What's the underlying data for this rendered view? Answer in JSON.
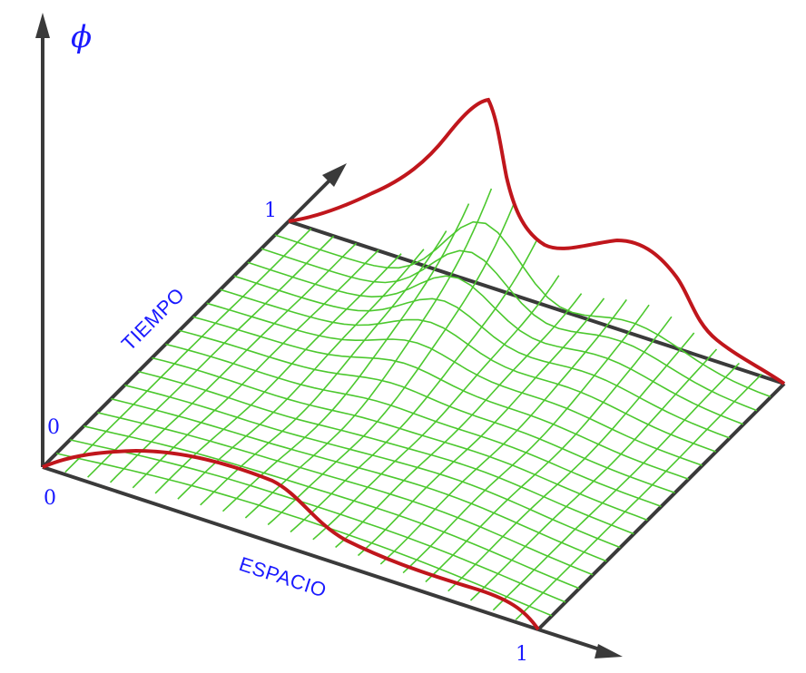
{
  "diagram": {
    "phi_label": "ϕ",
    "space_label": "ESPACIO",
    "time_label": "TIEMPO",
    "origin_time_label": "0",
    "origin_space_label": "0",
    "space_end_label": "1",
    "time_end_label": "1"
  },
  "colors": {
    "axis": "#3a3a3a",
    "label": "#1a1aff",
    "boundary": "#c0161c",
    "mesh": "#4cc82e"
  }
}
